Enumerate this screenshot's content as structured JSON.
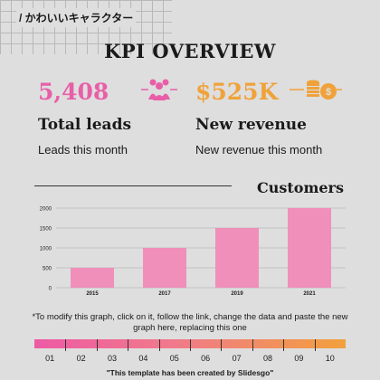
{
  "brand": "/ かわいいキャラクター",
  "title": "KPI OVERVIEW",
  "kpis": [
    {
      "value": "5,408",
      "label": "Total leads",
      "sub": "Leads this month",
      "color": "#e85fa8",
      "icon": "people-icon"
    },
    {
      "value": "$525K",
      "label": "New revenue",
      "sub": "New revenue this month",
      "color": "#f0a23a",
      "icon": "coins-icon"
    }
  ],
  "chart_data": {
    "type": "bar",
    "title": "Customers",
    "categories": [
      "2015",
      "2017",
      "2019",
      "2021"
    ],
    "values": [
      500,
      1000,
      1500,
      2000
    ],
    "ylim": [
      0,
      2000
    ],
    "yticks": [
      "0",
      "500",
      "1000",
      "1500",
      "2000"
    ],
    "grid": true,
    "bar_color": "#f08fba"
  },
  "note": "*To modify this graph, click on it, follow the link, change the data and paste the new graph here, replacing this one",
  "scale": [
    "01",
    "02",
    "03",
    "04",
    "05",
    "06",
    "07",
    "08",
    "09",
    "10"
  ],
  "credit": "\"This template has been created by Slidesgo\""
}
